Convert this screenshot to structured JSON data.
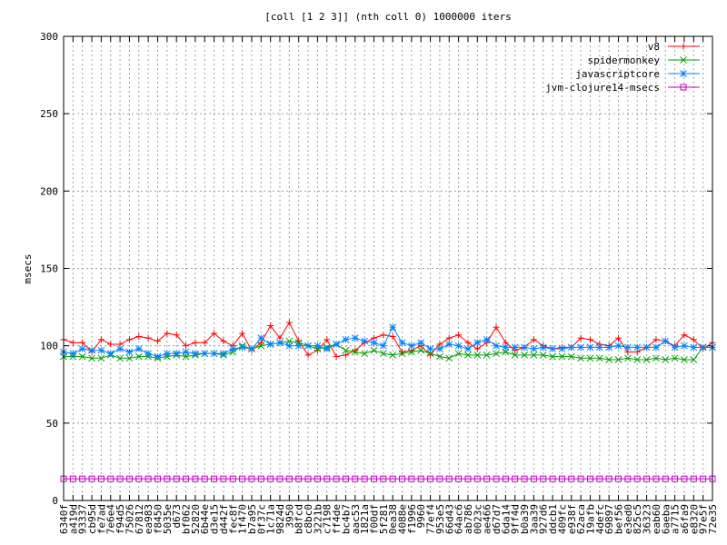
{
  "chart_data": {
    "type": "line",
    "title": "[coll [1 2 3]] (nth coll 0) 1000000 iters",
    "xlabel": "",
    "ylabel": "msecs",
    "ylim": [
      0,
      300
    ],
    "yticks": [
      0,
      50,
      100,
      150,
      200,
      250,
      300
    ],
    "grid": true,
    "legend_position": "top-right",
    "categories": [
      "6340f",
      "a419d",
      "93337",
      "cb95d",
      "fe7ad",
      "7e6e4",
      "f94d5",
      "75026",
      "67812",
      "ea983",
      "f8450",
      "5035e",
      "d673",
      "bf062",
      "52820",
      "6b44e",
      "d3e15",
      "d442f",
      "fec8f",
      "1f470",
      "b7a95",
      "0f37c",
      "1c71a",
      "9824d",
      "3950",
      "b8fcd",
      "c8bc0",
      "3221b",
      "c7198",
      "ff4de",
      "bc4b7",
      "aac53",
      "1821a",
      "f00df",
      "5f281",
      "0ea38",
      "4088e",
      "f1996",
      "9960",
      "77ef4",
      "953e5",
      "66d43",
      "64ac6",
      "ab786",
      "0023c",
      "ae466",
      "d67d7",
      "6da14",
      "9ff4d",
      "b0a39",
      "3aa39",
      "927d6",
      "ddcb1",
      "409fc",
      "e938f",
      "62aca",
      "19afb",
      "4defc",
      "69897",
      "bef56",
      "e3ed0",
      "825c5",
      "36323",
      "eab60",
      "6aeba",
      "a7715",
      "a6fa9",
      "e8320",
      "97e5f",
      "72e35"
    ],
    "series": [
      {
        "name": "v8",
        "color": "#ff0000",
        "marker": "plus",
        "values": [
          104,
          102,
          102,
          96,
          104,
          101,
          101,
          104,
          106,
          105,
          103,
          108,
          107,
          100,
          102,
          102,
          108,
          103,
          100,
          108,
          97,
          102,
          113,
          105,
          115,
          103,
          94,
          97,
          104,
          93,
          94,
          97,
          102,
          105,
          107,
          106,
          96,
          97,
          100,
          94,
          101,
          105,
          107,
          102,
          98,
          102,
          112,
          102,
          97,
          99,
          104,
          100,
          98,
          99,
          99,
          105,
          104,
          101,
          100,
          105,
          96,
          96,
          99,
          104,
          103,
          100,
          107,
          104,
          98,
          102
        ]
      },
      {
        "name": "spidermonkey",
        "color": "#00a000",
        "marker": "x",
        "values": [
          93,
          93,
          93,
          92,
          92,
          94,
          92,
          92,
          93,
          93,
          92,
          93,
          94,
          93,
          94,
          95,
          95,
          94,
          96,
          100,
          98,
          100,
          101,
          102,
          103,
          102,
          100,
          98,
          99,
          101,
          97,
          96,
          95,
          97,
          95,
          94,
          95,
          96,
          97,
          95,
          93,
          92,
          95,
          94,
          94,
          94,
          95,
          96,
          94,
          94,
          94,
          94,
          93,
          93,
          93,
          92,
          92,
          92,
          91,
          91,
          92,
          91,
          91,
          92,
          91,
          92,
          91,
          91,
          99,
          99
        ]
      },
      {
        "name": "javascriptcore",
        "color": "#0080ff",
        "marker": "star",
        "values": [
          96,
          95,
          98,
          97,
          97,
          95,
          98,
          96,
          98,
          95,
          93,
          95,
          95,
          96,
          95,
          95,
          95,
          95,
          98,
          99,
          98,
          105,
          101,
          102,
          100,
          100,
          100,
          100,
          98,
          101,
          104,
          105,
          103,
          102,
          100,
          112,
          102,
          100,
          102,
          98,
          98,
          101,
          100,
          98,
          102,
          104,
          100,
          99,
          99,
          99,
          98,
          99,
          98,
          98,
          99,
          99,
          99,
          99,
          99,
          100,
          99,
          99,
          99,
          99,
          103,
          99,
          100,
          99,
          99,
          99
        ]
      },
      {
        "name": "jvm-clojure14-msecs",
        "color": "#c000c0",
        "marker": "square",
        "values": [
          14,
          14,
          14,
          14,
          14,
          14,
          14,
          14,
          14,
          14,
          14,
          14,
          14,
          14,
          14,
          14,
          14,
          14,
          14,
          14,
          14,
          14,
          14,
          14,
          14,
          14,
          14,
          14,
          14,
          14,
          14,
          14,
          14,
          14,
          14,
          14,
          14,
          14,
          14,
          14,
          14,
          14,
          14,
          14,
          14,
          14,
          14,
          14,
          14,
          14,
          14,
          14,
          14,
          14,
          14,
          14,
          14,
          14,
          14,
          14,
          14,
          14,
          14,
          14,
          14,
          14,
          14,
          14,
          14,
          14
        ]
      }
    ]
  }
}
